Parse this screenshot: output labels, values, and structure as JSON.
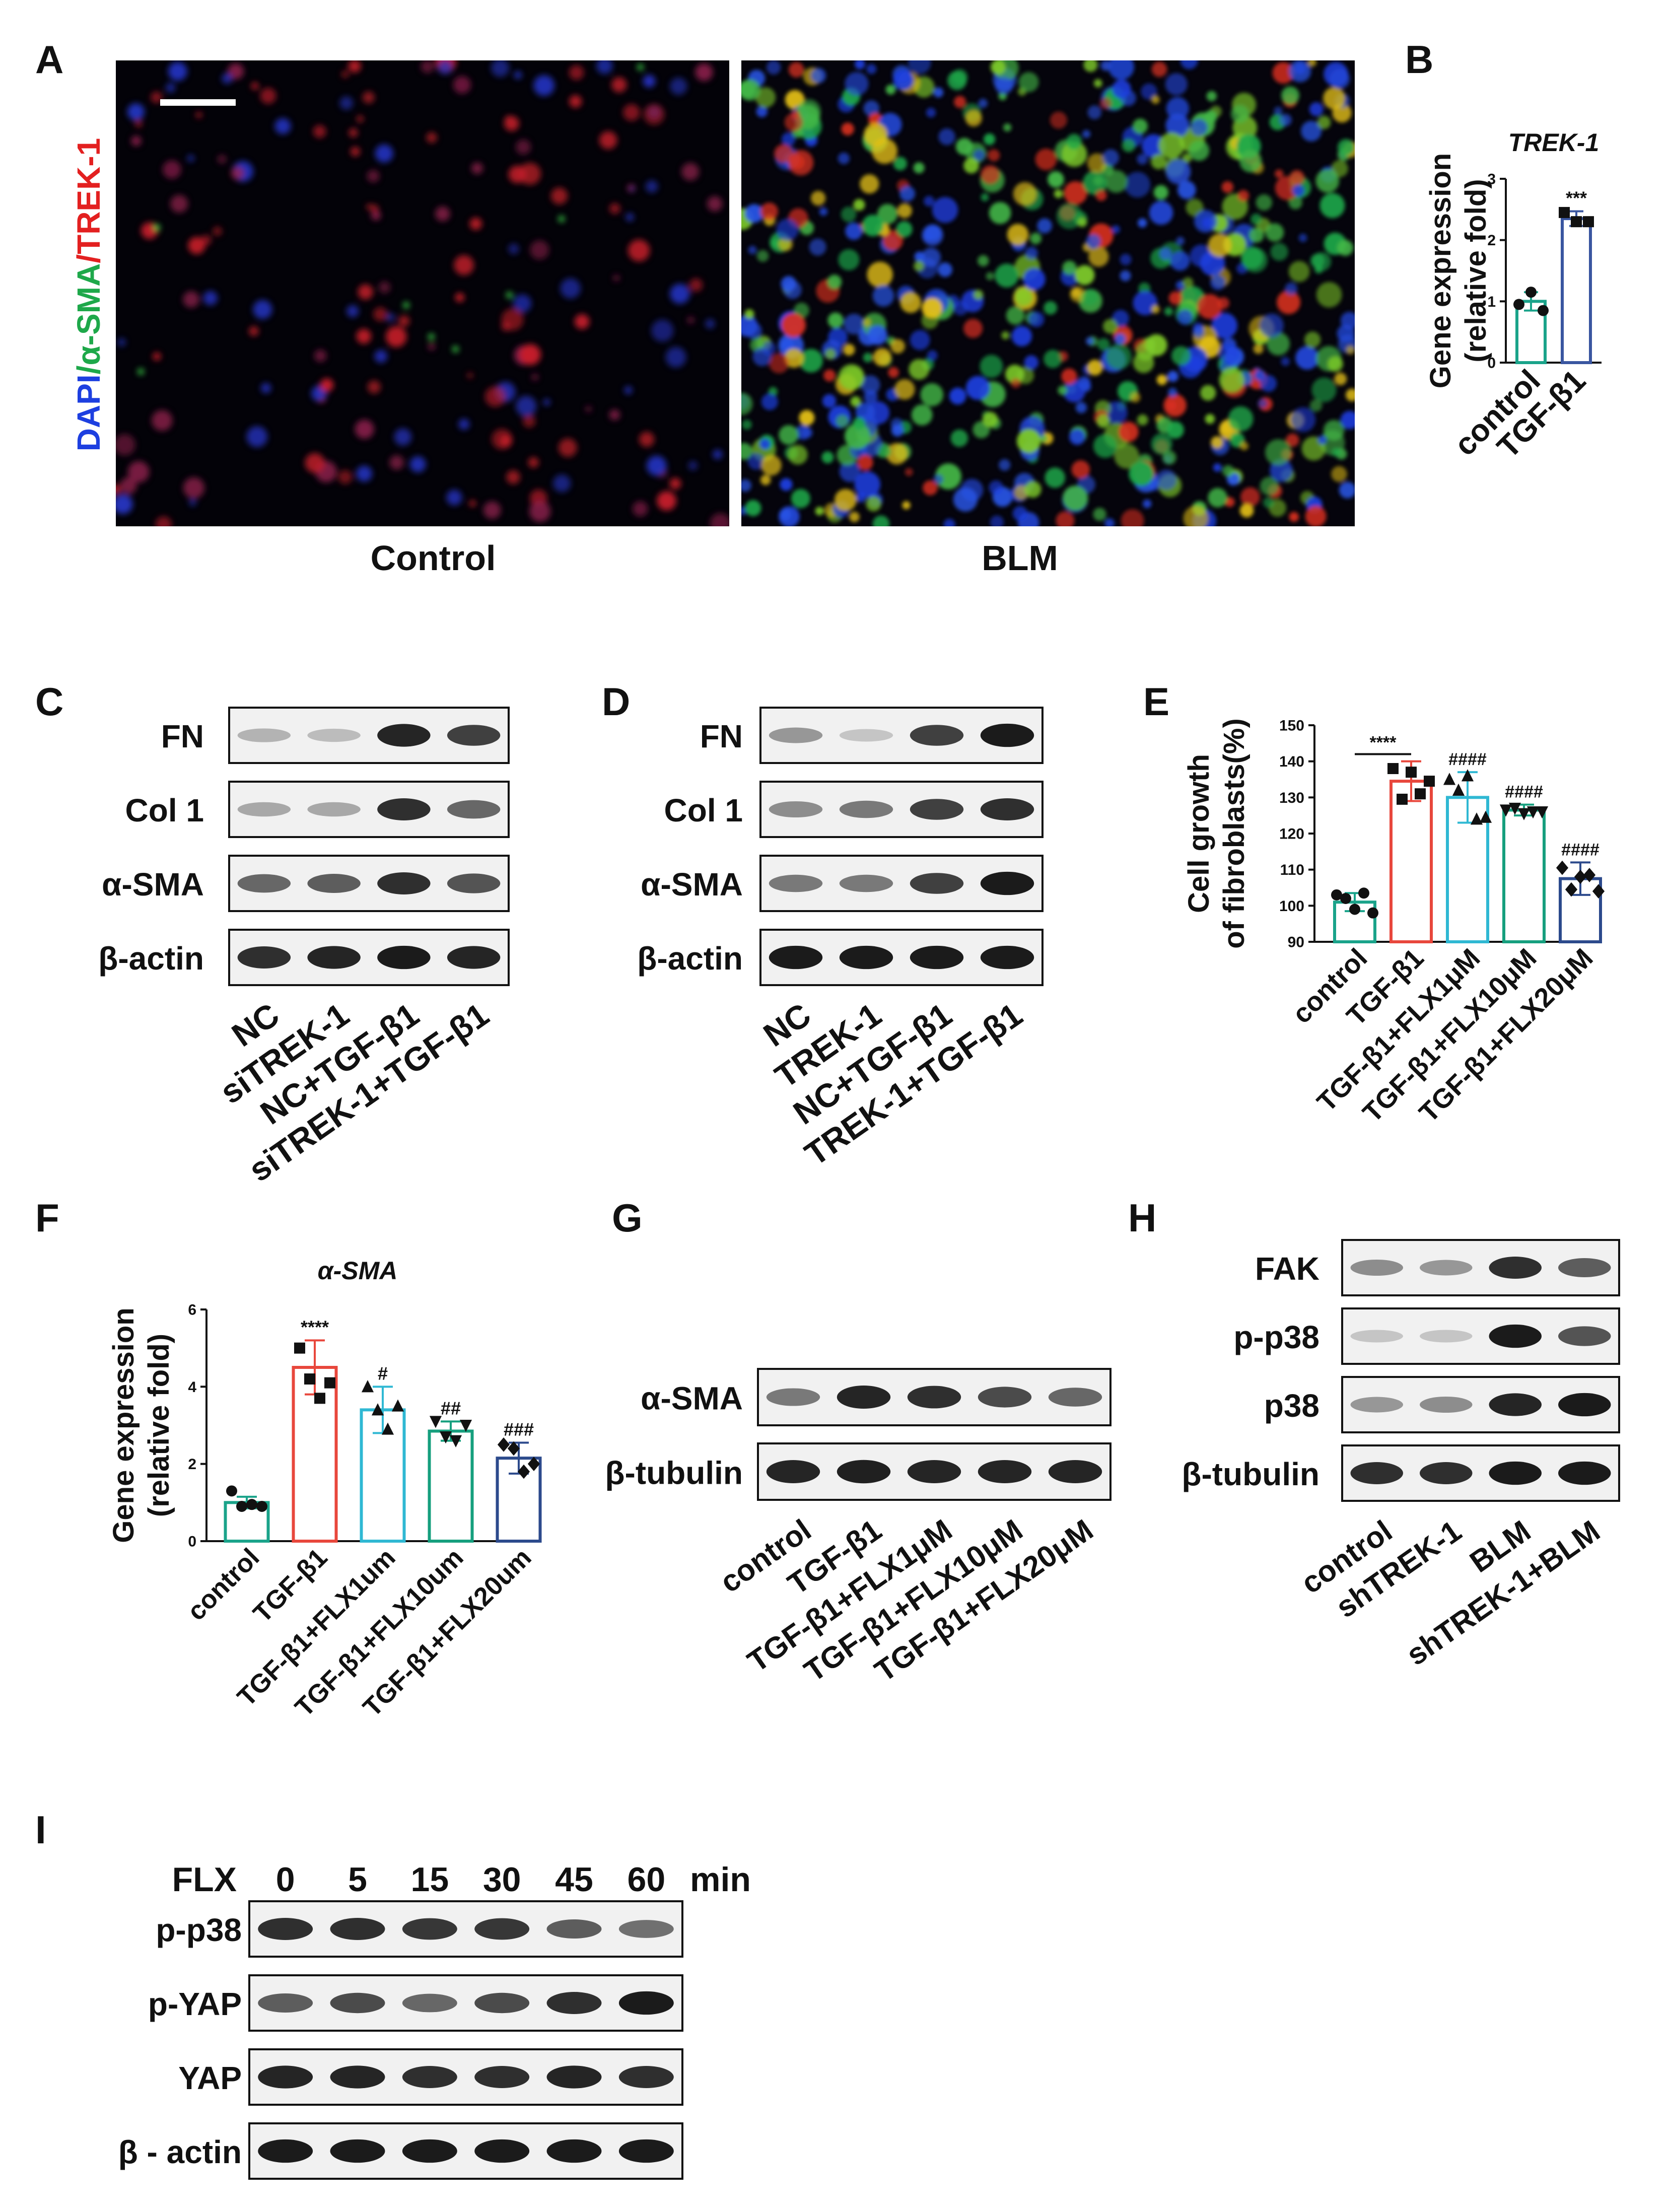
{
  "panel_letters": [
    "A",
    "B",
    "C",
    "D",
    "E",
    "F",
    "G",
    "H",
    "I"
  ],
  "colors": {
    "control": "#1aa38a",
    "tgf": "#e8473c",
    "flx1": "#2fb8d3",
    "flx10": "#169f7e",
    "flx20": "#2c4a8c",
    "panelB_control": "#1aa38a",
    "panelB_tgf": "#3a56a0",
    "dapi": "#1d3fe0",
    "asma": "#1ea84a",
    "trek1": "#e32020"
  },
  "panelA": {
    "ylabel_parts": [
      "DAPI",
      "/α-SMA",
      "/TREK-1"
    ],
    "image_labels": [
      "Control",
      "BLM"
    ]
  },
  "panelC": {
    "bands": [
      "FN",
      "Col 1",
      "α-SMA",
      "β-actin"
    ],
    "lanes": [
      "NC",
      "siTREK-1",
      "NC+TGF-β1",
      "siTREK-1+TGF-β1"
    ]
  },
  "panelD": {
    "bands": [
      "FN",
      "Col 1",
      "α-SMA",
      "β-actin"
    ],
    "lanes": [
      "NC",
      "TREK-1",
      "NC+TGF-β1",
      "TREK-1+TGF-β1"
    ]
  },
  "panelG": {
    "bands": [
      "α-SMA",
      "β-tubulin"
    ],
    "lanes": [
      "control",
      "TGF-β1",
      "TGF-β1+FLX1μM",
      "TGF-β1+FLX10μM",
      "TGF-β1+FLX20μM"
    ]
  },
  "panelH": {
    "bands": [
      "FAK",
      "p-p38",
      "p38",
      "β-tubulin"
    ],
    "lanes": [
      "control",
      "shTREK-1",
      "BLM",
      "shTREK-1+BLM"
    ]
  },
  "panelI": {
    "prefix": "FLX",
    "times": [
      "0",
      "5",
      "15",
      "30",
      "45",
      "60"
    ],
    "unit": "min",
    "bands": [
      "p-p38",
      "p-YAP",
      "YAP",
      "β - actin"
    ]
  },
  "chart_data": [
    {
      "panel": "B",
      "type": "bar",
      "title": "TREK-1",
      "ylabel": "Gene expression (relative fold)",
      "categories": [
        "control",
        "TGF-β1"
      ],
      "values": [
        1.0,
        2.35
      ],
      "errors": [
        0.15,
        0.12
      ],
      "points": [
        [
          0.95,
          1.15,
          0.85
        ],
        [
          2.45,
          2.3,
          2.3
        ]
      ],
      "annotations": [
        "",
        "***"
      ],
      "ylim": [
        0,
        3
      ],
      "yticks": [
        "0",
        "1",
        "2",
        "3"
      ]
    },
    {
      "panel": "E",
      "type": "bar",
      "ylabel": "Cell growth of fibroblasts(%)",
      "categories": [
        "control",
        "TGF-β1",
        "TGF-β1+FLX1μM",
        "TGF-β1+FLX10μM",
        "TGF-β1+FLX20μM"
      ],
      "values": [
        101,
        134.5,
        130,
        126.5,
        107.5
      ],
      "errors": [
        2.5,
        5.5,
        7,
        1.5,
        4.5
      ],
      "points": [
        [
          103,
          102,
          99,
          103.5,
          98
        ],
        [
          138,
          129.5,
          137,
          131,
          134.5
        ],
        [
          135,
          132,
          136,
          124,
          124.5
        ],
        [
          126.5,
          127,
          125.5,
          126,
          126
        ],
        [
          110.5,
          104.5,
          108,
          108.5,
          104
        ]
      ],
      "annotations": [
        "",
        "",
        "####",
        "####",
        "####"
      ],
      "bracket_label": "****",
      "ylim": [
        90,
        150
      ],
      "yticks": [
        "90",
        "100",
        "110",
        "120",
        "130",
        "140",
        "150"
      ]
    },
    {
      "panel": "F",
      "type": "bar",
      "title": "α-SMA",
      "ylabel": "Gene expression (relative fold)",
      "categories": [
        "control",
        "TGF-β1",
        "TGF-β1+FLX1um",
        "TGF-β1+FLX10um",
        "TGF-β1+FLX20um"
      ],
      "values": [
        1.0,
        4.5,
        3.4,
        2.85,
        2.15
      ],
      "errors": [
        0.15,
        0.7,
        0.6,
        0.25,
        0.4
      ],
      "points": [
        [
          1.3,
          0.9,
          0.95,
          0.9
        ],
        [
          5.0,
          4.2,
          3.7,
          4.1
        ],
        [
          4.0,
          3.4,
          2.9,
          3.5
        ],
        [
          3.1,
          2.7,
          2.6,
          3.0
        ],
        [
          2.5,
          2.4,
          1.8,
          2.0
        ]
      ],
      "annotations": [
        "",
        "****",
        "#",
        "##",
        "###"
      ],
      "ylim": [
        0,
        6
      ],
      "yticks": [
        "0",
        "2",
        "4",
        "6"
      ]
    }
  ]
}
